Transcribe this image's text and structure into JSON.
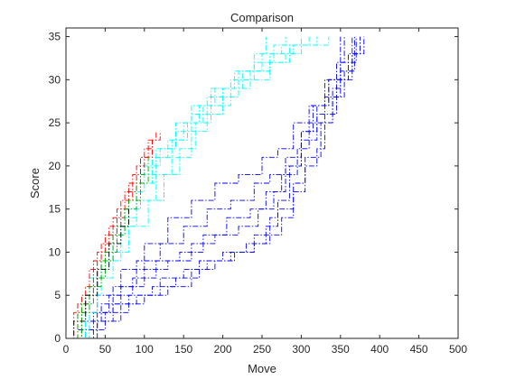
{
  "chart_data": {
    "type": "line",
    "title": "Comparison",
    "xlabel": "Move",
    "ylabel": "Score",
    "xlim": [
      0,
      500
    ],
    "ylim": [
      0,
      36
    ],
    "xticks": [
      0,
      50,
      100,
      150,
      200,
      250,
      300,
      350,
      400,
      450,
      500
    ],
    "yticks": [
      0,
      5,
      10,
      15,
      20,
      25,
      30,
      35
    ],
    "grid": false,
    "legend": "none",
    "line_style": "dash-dot",
    "series": [
      {
        "color": "#0000ff",
        "points": [
          [
            0,
            0
          ],
          [
            30,
            2
          ],
          [
            60,
            4
          ],
          [
            90,
            5
          ],
          [
            120,
            7
          ],
          [
            150,
            8
          ],
          [
            180,
            9
          ],
          [
            210,
            10
          ],
          [
            240,
            12
          ],
          [
            260,
            14
          ],
          [
            270,
            16
          ],
          [
            285,
            20
          ],
          [
            300,
            24
          ],
          [
            320,
            27
          ],
          [
            335,
            30
          ],
          [
            345,
            32
          ],
          [
            355,
            35
          ]
        ]
      },
      {
        "color": "#0000ff",
        "points": [
          [
            0,
            0
          ],
          [
            25,
            1
          ],
          [
            50,
            3
          ],
          [
            80,
            5
          ],
          [
            110,
            6
          ],
          [
            140,
            7
          ],
          [
            170,
            9
          ],
          [
            200,
            10
          ],
          [
            230,
            11
          ],
          [
            255,
            13
          ],
          [
            270,
            15
          ],
          [
            290,
            18
          ],
          [
            305,
            21
          ],
          [
            325,
            25
          ],
          [
            340,
            28
          ],
          [
            355,
            31
          ],
          [
            365,
            35
          ]
        ]
      },
      {
        "color": "#0000ff",
        "points": [
          [
            0,
            0
          ],
          [
            20,
            2
          ],
          [
            45,
            4
          ],
          [
            70,
            6
          ],
          [
            100,
            8
          ],
          [
            130,
            9
          ],
          [
            160,
            11
          ],
          [
            190,
            12
          ],
          [
            220,
            13
          ],
          [
            245,
            15
          ],
          [
            265,
            17
          ],
          [
            280,
            20
          ],
          [
            300,
            23
          ],
          [
            320,
            26
          ],
          [
            345,
            30
          ],
          [
            365,
            33
          ],
          [
            380,
            35
          ]
        ]
      },
      {
        "color": "#0000ff",
        "points": [
          [
            0,
            0
          ],
          [
            35,
            3
          ],
          [
            60,
            6
          ],
          [
            90,
            9
          ],
          [
            120,
            11
          ],
          [
            150,
            13
          ],
          [
            180,
            15
          ],
          [
            210,
            16
          ],
          [
            240,
            18
          ],
          [
            260,
            19
          ],
          [
            280,
            21
          ],
          [
            300,
            24
          ],
          [
            315,
            27
          ],
          [
            335,
            30
          ],
          [
            360,
            33
          ],
          [
            375,
            35
          ]
        ]
      },
      {
        "color": "#0000ff",
        "points": [
          [
            0,
            0
          ],
          [
            40,
            5
          ],
          [
            70,
            8
          ],
          [
            100,
            11
          ],
          [
            130,
            14
          ],
          [
            160,
            16
          ],
          [
            190,
            18
          ],
          [
            220,
            19
          ],
          [
            250,
            21
          ],
          [
            270,
            22
          ],
          [
            290,
            25
          ],
          [
            310,
            27
          ],
          [
            330,
            30
          ],
          [
            350,
            32
          ],
          [
            370,
            35
          ]
        ]
      },
      {
        "color": "#0000ff",
        "points": [
          [
            0,
            0
          ],
          [
            15,
            1
          ],
          [
            40,
            2
          ],
          [
            70,
            4
          ],
          [
            100,
            5
          ],
          [
            130,
            6
          ],
          [
            160,
            8
          ],
          [
            190,
            9
          ],
          [
            215,
            10
          ],
          [
            240,
            11
          ],
          [
            260,
            12
          ],
          [
            275,
            14
          ],
          [
            290,
            17
          ],
          [
            305,
            20
          ],
          [
            320,
            22
          ],
          [
            330,
            25
          ],
          [
            340,
            29
          ],
          [
            350,
            35
          ]
        ]
      },
      {
        "color": "#0000ff",
        "points": [
          [
            0,
            0
          ],
          [
            30,
            3
          ],
          [
            55,
            5
          ],
          [
            85,
            7
          ],
          [
            115,
            9
          ],
          [
            145,
            10
          ],
          [
            175,
            12
          ],
          [
            205,
            14
          ],
          [
            235,
            15
          ],
          [
            255,
            17
          ],
          [
            275,
            19
          ],
          [
            295,
            22
          ],
          [
            310,
            25
          ],
          [
            330,
            28
          ],
          [
            350,
            31
          ],
          [
            368,
            35
          ]
        ]
      },
      {
        "color": "#00ffff",
        "points": [
          [
            0,
            0
          ],
          [
            20,
            5
          ],
          [
            40,
            9
          ],
          [
            60,
            13
          ],
          [
            80,
            17
          ],
          [
            100,
            20
          ],
          [
            120,
            22
          ],
          [
            140,
            24
          ],
          [
            160,
            26
          ],
          [
            180,
            28
          ],
          [
            200,
            29
          ],
          [
            220,
            31
          ],
          [
            240,
            33
          ],
          [
            255,
            35
          ]
        ]
      },
      {
        "color": "#00ffff",
        "points": [
          [
            0,
            0
          ],
          [
            25,
            6
          ],
          [
            45,
            10
          ],
          [
            65,
            14
          ],
          [
            90,
            18
          ],
          [
            110,
            21
          ],
          [
            130,
            23
          ],
          [
            150,
            25
          ],
          [
            170,
            27
          ],
          [
            190,
            29
          ],
          [
            215,
            31
          ],
          [
            240,
            32
          ],
          [
            265,
            34
          ],
          [
            280,
            35
          ]
        ]
      },
      {
        "color": "#00ffff",
        "points": [
          [
            0,
            0
          ],
          [
            15,
            4
          ],
          [
            35,
            8
          ],
          [
            55,
            12
          ],
          [
            75,
            15
          ],
          [
            95,
            18
          ],
          [
            115,
            21
          ],
          [
            135,
            23
          ],
          [
            155,
            25
          ],
          [
            175,
            27
          ],
          [
            200,
            29
          ],
          [
            225,
            31
          ],
          [
            250,
            33
          ],
          [
            275,
            34
          ],
          [
            300,
            35
          ]
        ]
      },
      {
        "color": "#00ffff",
        "points": [
          [
            0,
            0
          ],
          [
            20,
            3
          ],
          [
            40,
            7
          ],
          [
            60,
            10
          ],
          [
            80,
            13
          ],
          [
            105,
            16
          ],
          [
            125,
            19
          ],
          [
            145,
            22
          ],
          [
            165,
            25
          ],
          [
            185,
            27
          ],
          [
            210,
            29
          ],
          [
            235,
            30
          ],
          [
            260,
            32
          ],
          [
            285,
            34
          ],
          [
            310,
            35
          ]
        ]
      },
      {
        "color": "#00ffff",
        "points": [
          [
            0,
            0
          ],
          [
            30,
            7
          ],
          [
            50,
            11
          ],
          [
            70,
            15
          ],
          [
            95,
            19
          ],
          [
            115,
            22
          ],
          [
            140,
            25
          ],
          [
            160,
            27
          ],
          [
            185,
            29
          ],
          [
            210,
            30
          ],
          [
            235,
            31
          ],
          [
            260,
            33
          ],
          [
            290,
            34
          ],
          [
            320,
            35
          ]
        ]
      },
      {
        "color": "#00ffff",
        "points": [
          [
            0,
            0
          ],
          [
            25,
            5
          ],
          [
            45,
            9
          ],
          [
            70,
            13
          ],
          [
            90,
            16
          ],
          [
            115,
            19
          ],
          [
            135,
            21
          ],
          [
            160,
            24
          ],
          [
            180,
            26
          ],
          [
            200,
            28
          ],
          [
            220,
            30
          ],
          [
            240,
            31
          ],
          [
            260,
            32
          ],
          [
            280,
            33
          ],
          [
            300,
            34
          ],
          [
            335,
            35
          ]
        ]
      },
      {
        "color": "#ff0000",
        "points": [
          [
            0,
            0
          ],
          [
            15,
            4
          ],
          [
            30,
            8
          ],
          [
            45,
            11
          ],
          [
            60,
            14
          ],
          [
            75,
            17
          ],
          [
            90,
            20
          ],
          [
            100,
            22
          ],
          [
            110,
            23
          ],
          [
            120,
            24
          ]
        ]
      },
      {
        "color": "#ff0000",
        "points": [
          [
            0,
            0
          ],
          [
            20,
            5
          ],
          [
            35,
            9
          ],
          [
            50,
            12
          ],
          [
            65,
            15
          ],
          [
            80,
            18
          ],
          [
            95,
            21
          ],
          [
            105,
            23
          ],
          [
            115,
            24
          ]
        ]
      },
      {
        "color": "#ff0000",
        "points": [
          [
            0,
            0
          ],
          [
            10,
            3
          ],
          [
            25,
            6
          ],
          [
            40,
            10
          ],
          [
            55,
            13
          ],
          [
            70,
            16
          ],
          [
            85,
            19
          ],
          [
            95,
            21
          ],
          [
            110,
            23
          ]
        ]
      },
      {
        "color": "#00aa00",
        "points": [
          [
            0,
            0
          ],
          [
            15,
            3
          ],
          [
            30,
            6
          ],
          [
            45,
            9
          ],
          [
            60,
            12
          ],
          [
            75,
            15
          ],
          [
            90,
            18
          ],
          [
            105,
            21
          ]
        ]
      },
      {
        "color": "#00aa00",
        "points": [
          [
            0,
            0
          ],
          [
            20,
            4
          ],
          [
            35,
            7
          ],
          [
            50,
            10
          ],
          [
            65,
            13
          ],
          [
            80,
            16
          ],
          [
            95,
            19
          ],
          [
            100,
            20
          ]
        ]
      },
      {
        "color": "#000000",
        "points": [
          [
            0,
            0
          ],
          [
            10,
            2
          ],
          [
            25,
            5
          ],
          [
            40,
            8
          ],
          [
            55,
            11
          ],
          [
            70,
            13
          ],
          [
            80,
            15
          ]
        ]
      }
    ]
  }
}
